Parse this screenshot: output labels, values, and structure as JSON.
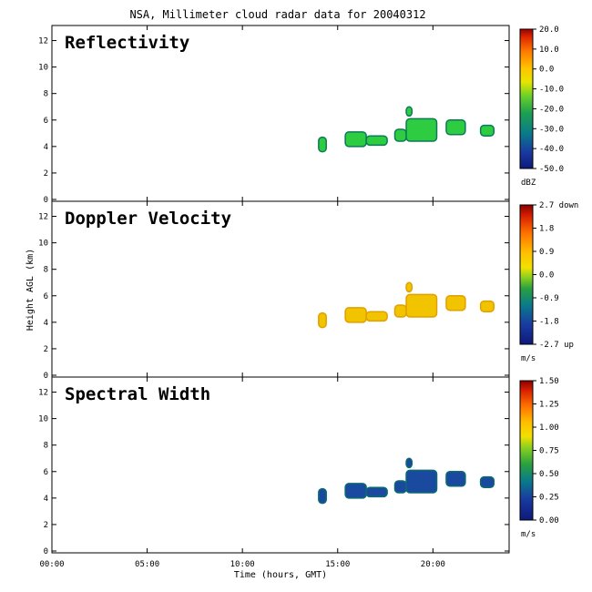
{
  "chart_data": {
    "type": "heatmap",
    "title": "NSA, Millimeter cloud radar data for 20040312",
    "xlabel": "Time (hours, GMT)",
    "ylabel": "Height AGL (km)",
    "xlim": [
      0,
      24
    ],
    "ylim": [
      0,
      13
    ],
    "x_ticks": [
      {
        "value": 0,
        "label": "00:00"
      },
      {
        "value": 5,
        "label": "05:00"
      },
      {
        "value": 10,
        "label": "10:00"
      },
      {
        "value": 15,
        "label": "15:00"
      },
      {
        "value": 20,
        "label": "20:00"
      }
    ],
    "y_ticks": [
      0,
      2,
      4,
      6,
      8,
      10,
      12
    ],
    "panels": [
      {
        "label": "Reflectivity",
        "colorbar": {
          "unit": "dBZ",
          "min": -50,
          "max": 20,
          "ticks": [
            "20.0",
            "10.0",
            "0.0",
            "-10.0",
            "-20.0",
            "-30.0",
            "-40.0",
            "-50.0"
          ]
        },
        "cloud_value": -30,
        "cloud_color": "#2ecc40",
        "edge_color": "#0a7a5a"
      },
      {
        "label": "Doppler Velocity",
        "colorbar": {
          "unit": "m/s",
          "min": -2.7,
          "max": 2.7,
          "ticks": [
            "2.7 down",
            "1.8",
            "0.9",
            "0.0",
            "-0.9",
            "-1.8",
            "-2.7 up"
          ]
        },
        "cloud_value": 0.2,
        "cloud_color": "#f2c400",
        "edge_color": "#e0a000"
      },
      {
        "label": "Spectral Width",
        "colorbar": {
          "unit": "m/s",
          "min": 0,
          "max": 1.5,
          "ticks": [
            "1.50",
            "1.25",
            "1.00",
            "0.75",
            "0.50",
            "0.25",
            "0.00"
          ]
        },
        "cloud_value": 0.2,
        "cloud_color": "#1a4aa0",
        "edge_color": "#0a6a70"
      }
    ],
    "cloud_cells": [
      {
        "t0": 14.0,
        "t1": 14.4,
        "h0": 3.6,
        "h1": 4.7
      },
      {
        "t0": 15.4,
        "t1": 16.5,
        "h0": 4.0,
        "h1": 5.1
      },
      {
        "t0": 16.5,
        "t1": 17.6,
        "h0": 4.1,
        "h1": 4.8
      },
      {
        "t0": 18.0,
        "t1": 18.6,
        "h0": 4.4,
        "h1": 5.3
      },
      {
        "t0": 18.6,
        "t1": 20.2,
        "h0": 4.4,
        "h1": 6.1
      },
      {
        "t0": 18.6,
        "t1": 18.9,
        "h0": 6.3,
        "h1": 7.0
      },
      {
        "t0": 20.7,
        "t1": 21.7,
        "h0": 4.9,
        "h1": 6.0
      },
      {
        "t0": 22.5,
        "t1": 23.2,
        "h0": 4.8,
        "h1": 5.6
      }
    ]
  }
}
